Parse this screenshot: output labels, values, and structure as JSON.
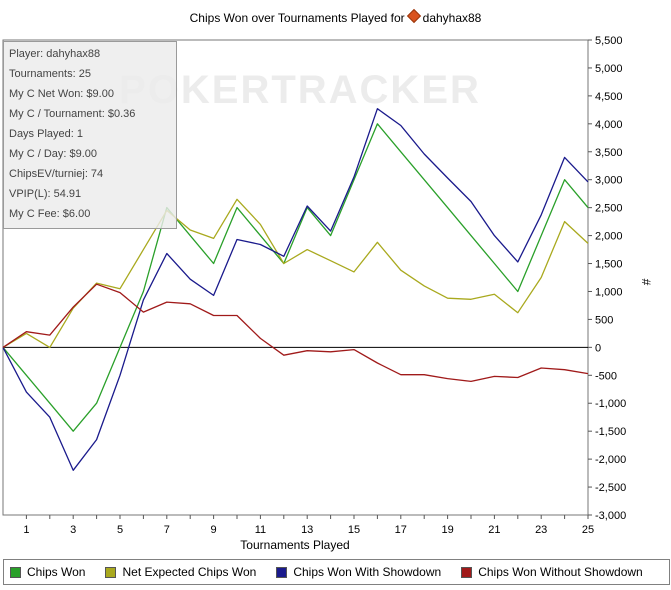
{
  "chart_data": {
    "type": "line",
    "title": "Chips Won over Tournaments Played for",
    "player_name": "dahyhax88",
    "xlabel": "Tournaments Played",
    "ylabel": "#",
    "xlim": [
      0,
      25
    ],
    "ylim": [
      -3000,
      5500
    ],
    "x_ticks": [
      1,
      3,
      5,
      7,
      9,
      11,
      13,
      15,
      17,
      19,
      21,
      23,
      25
    ],
    "y_ticks": [
      -3000,
      -2500,
      -2000,
      -1500,
      -1000,
      -500,
      0,
      500,
      1000,
      1500,
      2000,
      2500,
      3000,
      3500,
      4000,
      4500,
      5000,
      5500
    ],
    "y_tick_labels": [
      "-3,000",
      "-2,500",
      "-2,000",
      "-1,500",
      "-1,000",
      "-500",
      "0",
      "500",
      "1,000",
      "1,500",
      "2,000",
      "2,500",
      "3,000",
      "3,500",
      "4,000",
      "4,500",
      "5,000",
      "5,500"
    ],
    "x": [
      0,
      1,
      2,
      3,
      4,
      5,
      6,
      7,
      8,
      9,
      10,
      11,
      12,
      13,
      14,
      15,
      16,
      17,
      18,
      19,
      20,
      21,
      22,
      23,
      24,
      25
    ],
    "series": [
      {
        "name": "Chips Won",
        "color": "#2aa02a",
        "values": [
          0,
          -500,
          -1000,
          -1500,
          -1000,
          0,
          1000,
          2500,
          2000,
          1500,
          2500,
          2000,
          1500,
          2500,
          2000,
          3000,
          4000,
          3500,
          3000,
          2500,
          2000,
          1500,
          1000,
          2000,
          3000,
          2500
        ]
      },
      {
        "name": "Net Expected Chips Won",
        "color": "#a9a91e",
        "values": [
          0,
          250,
          0,
          700,
          1150,
          1050,
          1750,
          2450,
          2100,
          1950,
          2650,
          2200,
          1500,
          1750,
          1550,
          1350,
          1880,
          1380,
          1100,
          880,
          860,
          950,
          620,
          1250,
          2250,
          1860
        ]
      },
      {
        "name": "Chips Won With Showdown",
        "color": "#1a1a8c",
        "values": [
          0,
          -800,
          -1250,
          -2200,
          -1650,
          -500,
          850,
          1680,
          1220,
          930,
          1930,
          1840,
          1630,
          2530,
          2080,
          3050,
          4270,
          3970,
          3460,
          3030,
          2610,
          2000,
          1530,
          2370,
          3400,
          2960
        ]
      },
      {
        "name": "Chips Won Without Showdown",
        "color": "#a01a1a",
        "values": [
          0,
          280,
          220,
          720,
          1130,
          980,
          630,
          810,
          780,
          570,
          570,
          160,
          -140,
          -60,
          -80,
          -40,
          -280,
          -490,
          -490,
          -560,
          -610,
          -520,
          -540,
          -370,
          -400,
          -470
        ]
      }
    ]
  },
  "watermark": "POKERTRACKER",
  "info_box": [
    "Player: dahyhax88",
    "Tournaments: 25",
    "My C Net Won: $9.00",
    "My C / Tournament: $0.36",
    "Days Played: 1",
    "My C / Day: $9.00",
    "ChipsEV/turniej: 74",
    "VPIP(L): 54.91",
    "My C Fee: $6.00"
  ],
  "legend": [
    "Chips Won",
    "Net Expected Chips Won",
    "Chips Won With Showdown",
    "Chips Won Without Showdown"
  ]
}
